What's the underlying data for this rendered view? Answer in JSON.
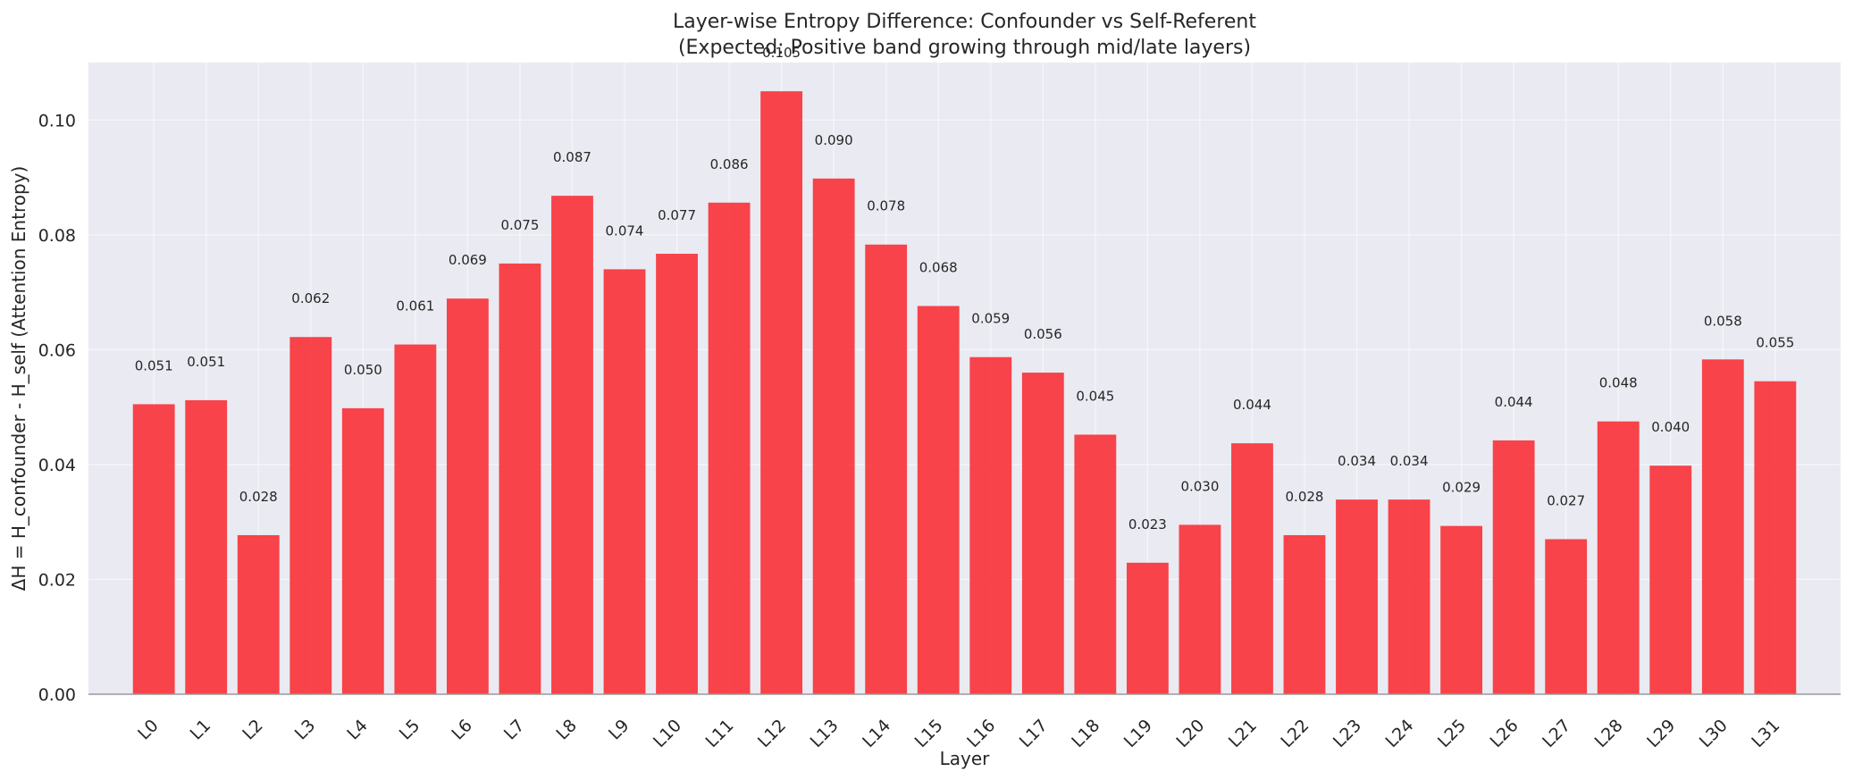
{
  "chart_data": {
    "type": "bar",
    "title": "Layer-wise Entropy Difference: Confounder vs Self-Referent",
    "subtitle": "(Expected: Positive band growing through mid/late layers)",
    "xlabel": "Layer",
    "ylabel": "ΔH = H_confounder - H_self (Attention Entropy)",
    "ylim": [
      0,
      0.11
    ],
    "yticks": [
      "0.00",
      "0.02",
      "0.04",
      "0.06",
      "0.08",
      "0.10"
    ],
    "grid": true,
    "bar_color": "#f7343b",
    "categories": [
      "L0",
      "L1",
      "L2",
      "L3",
      "L4",
      "L5",
      "L6",
      "L7",
      "L8",
      "L9",
      "L10",
      "L11",
      "L12",
      "L13",
      "L14",
      "L15",
      "L16",
      "L17",
      "L18",
      "L19",
      "L20",
      "L21",
      "L22",
      "L23",
      "L24",
      "L25",
      "L26",
      "L27",
      "L28",
      "L29",
      "L30",
      "L31"
    ],
    "values": [
      0.0505,
      0.0512,
      0.0277,
      0.0622,
      0.0498,
      0.0609,
      0.0689,
      0.075,
      0.0868,
      0.074,
      0.0767,
      0.0856,
      0.105,
      0.0898,
      0.0783,
      0.0676,
      0.0587,
      0.056,
      0.0452,
      0.0229,
      0.0295,
      0.0437,
      0.0277,
      0.0339,
      0.0339,
      0.0293,
      0.0442,
      0.027,
      0.0475,
      0.0398,
      0.0583,
      0.0545
    ],
    "data_labels": [
      "0.051",
      "0.051",
      "0.028",
      "0.062",
      "0.050",
      "0.061",
      "0.069",
      "0.075",
      "0.087",
      "0.074",
      "0.077",
      "0.086",
      "0.105",
      "0.090",
      "0.078",
      "0.068",
      "0.059",
      "0.056",
      "0.045",
      "0.023",
      "0.030",
      "0.044",
      "0.028",
      "0.034",
      "0.034",
      "0.029",
      "0.044",
      "0.027",
      "0.048",
      "0.040",
      "0.058",
      "0.055"
    ]
  }
}
